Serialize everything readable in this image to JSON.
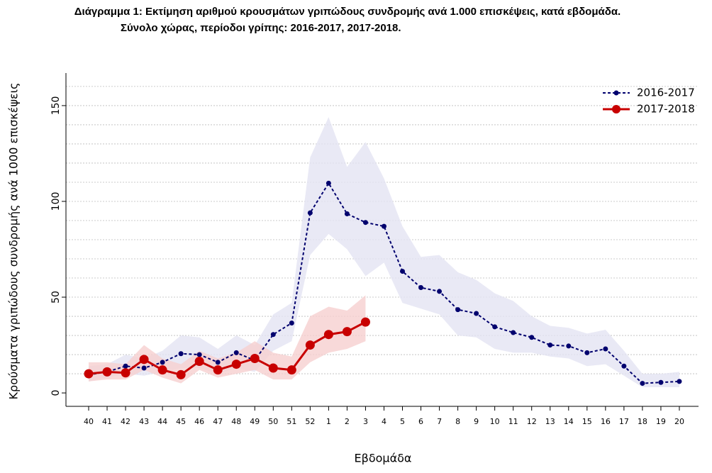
{
  "chart_data": {
    "type": "line",
    "title": "Διάγραμμα 1: Εκτίμηση αριθμού κρουσμάτων γριπώδους συνδρομής ανά 1.000 επισκέψεις, κατά εβδομάδα.",
    "subtitle": "Σύνολο χώρας, περίοδοι γρίπης:  2016-2017, 2017-2018.",
    "xlabel": "Εβδομάδα",
    "ylabel": "Κρούσματα γριπώδους συνδρομής ανά 1000 επισκέψεις",
    "categories": [
      "40",
      "41",
      "42",
      "43",
      "44",
      "45",
      "46",
      "47",
      "48",
      "49",
      "50",
      "51",
      "52",
      "1",
      "2",
      "3",
      "4",
      "5",
      "6",
      "7",
      "8",
      "9",
      "10",
      "11",
      "12",
      "13",
      "14",
      "15",
      "16",
      "17",
      "18",
      "19",
      "20"
    ],
    "ylim": [
      -7,
      167
    ],
    "yticks": [
      0,
      50,
      100,
      150
    ],
    "ygrid": [
      10,
      20,
      30,
      40,
      50,
      60,
      70,
      80,
      90,
      100,
      110,
      120,
      130,
      140,
      150,
      160
    ],
    "legend": "top-right",
    "series": [
      {
        "name": "2016-2017",
        "color": "#00006e",
        "band_color": "#e3e4f3",
        "dashed": true,
        "values": [
          9.5,
          11,
          14,
          13,
          16,
          20.5,
          20,
          16,
          21,
          17,
          30.5,
          36.5,
          94,
          109.5,
          93.5,
          89,
          87,
          63.5,
          55,
          53,
          43.5,
          41.5,
          34.5,
          31.5,
          29,
          25,
          24.5,
          21,
          23,
          14,
          5,
          5.5,
          6
        ],
        "upper": [
          14,
          15,
          20,
          18,
          22,
          30,
          29,
          23,
          30,
          25,
          41,
          47,
          123,
          144,
          118,
          131,
          112,
          87,
          71,
          72,
          63,
          59,
          52,
          48,
          40,
          35,
          34,
          31,
          33,
          22,
          10,
          10,
          11
        ],
        "lower": [
          6,
          8,
          10,
          9,
          11,
          13,
          13,
          10,
          13,
          11,
          22,
          27,
          72,
          83,
          75,
          61,
          68,
          47,
          44,
          41,
          30,
          29,
          23,
          21,
          21,
          19,
          18,
          14,
          15,
          9,
          3,
          3,
          3
        ]
      },
      {
        "name": "2017-2018",
        "color": "#c80000",
        "band_color": "#f6cfcf",
        "dashed": false,
        "values": [
          10,
          11,
          10.5,
          17.5,
          12,
          9.5,
          16.5,
          12,
          15,
          18,
          13,
          12,
          25,
          30.5,
          32,
          37,
          null,
          null,
          null,
          null,
          null,
          null,
          null,
          null,
          null,
          null,
          null,
          null,
          null,
          null,
          null,
          null,
          null
        ],
        "upper": [
          16,
          16,
          15,
          25,
          18,
          15,
          22,
          18,
          21,
          27,
          21,
          19,
          40,
          45,
          43,
          51,
          null,
          null,
          null,
          null,
          null,
          null,
          null,
          null,
          null,
          null,
          null,
          null,
          null,
          null,
          null,
          null,
          null
        ],
        "lower": [
          6,
          7,
          7,
          12,
          8,
          5,
          12,
          8,
          10,
          12,
          7,
          7,
          16,
          21,
          23,
          27,
          null,
          null,
          null,
          null,
          null,
          null,
          null,
          null,
          null,
          null,
          null,
          null,
          null,
          null,
          null,
          null,
          null
        ]
      }
    ]
  }
}
